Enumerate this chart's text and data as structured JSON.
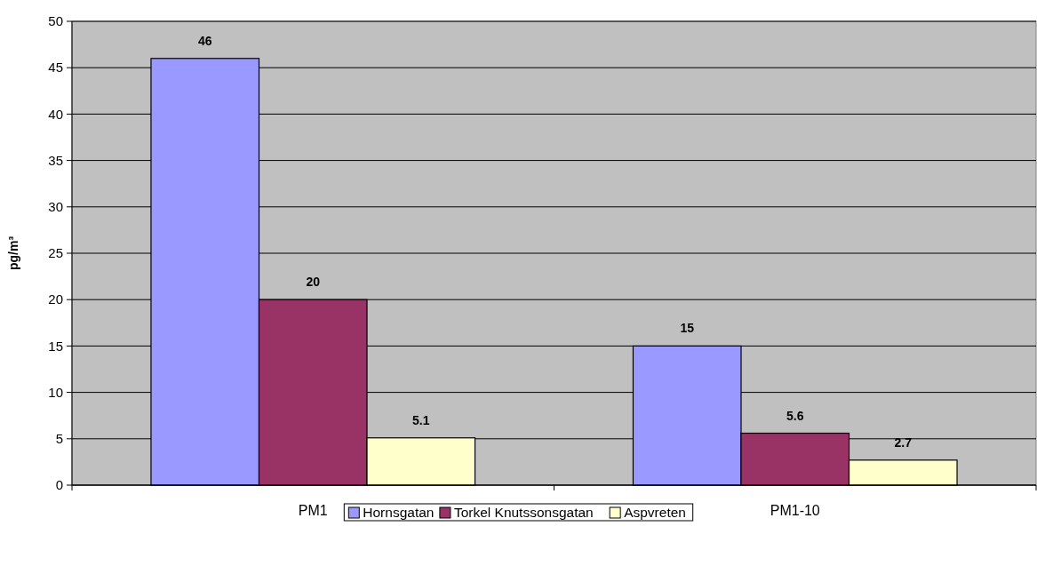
{
  "chart_data": {
    "type": "bar",
    "ylabel": "pg/m³",
    "categories": [
      "PM1",
      "PM1-10"
    ],
    "series": [
      {
        "name": "Hornsgatan",
        "color": "#9999ff",
        "values": [
          46,
          15
        ]
      },
      {
        "name": "Torkel Knutssonsgatan",
        "color": "#993366",
        "values": [
          20,
          5.6
        ]
      },
      {
        "name": "Aspvreten",
        "color": "#ffffcc",
        "values": [
          5.1,
          2.7
        ]
      }
    ],
    "ylim": [
      0,
      50
    ],
    "yticks": [
      0,
      5,
      10,
      15,
      20,
      25,
      30,
      35,
      40,
      45,
      50
    ],
    "grid": "y",
    "data_labels": true,
    "legend": "bottom"
  }
}
